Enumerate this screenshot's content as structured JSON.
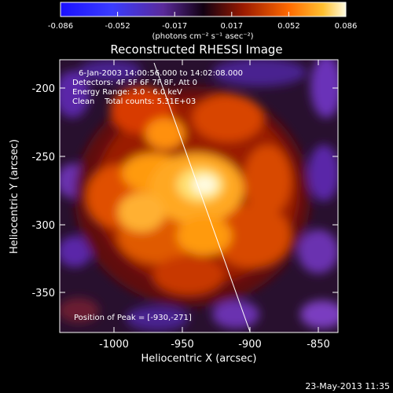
{
  "colorbar": {
    "ticks": [
      "-0.086",
      "-0.052",
      "-0.017",
      "0.017",
      "0.052",
      "0.086"
    ],
    "unit_label": "(photons cm⁻² s⁻¹ asec⁻²)"
  },
  "plot": {
    "title": "Reconstructed RHESSI Image",
    "info_lines": [
      "6-Jan-2003 14:00:56.000 to 14:02:08.000",
      "Detectors: 4F 5F 6F 7F 8F, Att 0",
      "Energy Range: 3.0 - 6.0 keV",
      "Clean    Total counts: 5.31E+03"
    ],
    "peak_label": "Position of Peak = [-930,-271]",
    "xlabel": "Heliocentric X (arcsec)",
    "ylabel": "Heliocentric Y (arcsec)",
    "xticks": [
      "-1000",
      "-950",
      "-900",
      "-850"
    ],
    "yticks": [
      "-200",
      "-250",
      "-300",
      "-350"
    ]
  },
  "footer": {
    "timestamp": "23-May-2013 11:35"
  },
  "colors": {
    "background": "#000000",
    "text": "#ffffff",
    "low": "#5a1aa0",
    "high": "#fffde0"
  }
}
